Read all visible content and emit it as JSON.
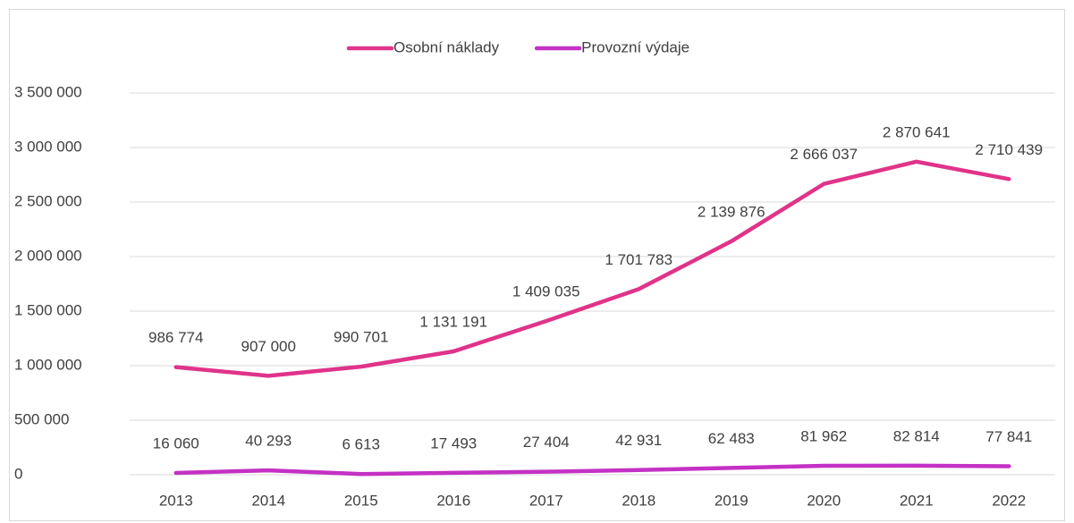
{
  "chart_data": {
    "type": "line",
    "categories": [
      "2013",
      "2014",
      "2015",
      "2016",
      "2017",
      "2018",
      "2019",
      "2020",
      "2021",
      "2022"
    ],
    "series": [
      {
        "name": "Osobní náklady",
        "color": "#e0338a",
        "values": [
          986774,
          907000,
          990701,
          1131191,
          1409035,
          1701783,
          2139876,
          2666037,
          2870641,
          2710439
        ],
        "value_labels": [
          "986 774",
          "907 000",
          "990 701",
          "1 131 191",
          "1 409 035",
          "1 701 783",
          "2 139 876",
          "2 666 037",
          "2 870 641",
          "2 710 439"
        ]
      },
      {
        "name": "Provozní výdaje",
        "color": "#c431c4",
        "values": [
          16060,
          40293,
          6613,
          17493,
          27404,
          42931,
          62483,
          81962,
          82814,
          77841
        ],
        "value_labels": [
          "16 060",
          "40 293",
          "6 613",
          "17 493",
          "27 404",
          "42 931",
          "62 483",
          "81 962",
          "82 814",
          "77 841"
        ]
      }
    ],
    "ylim": [
      0,
      3500000
    ],
    "yticks": [
      0,
      {
        "value": 500000,
        "label": "500 000"
      },
      {
        "value": 1000000,
        "label": "1 000 000"
      },
      {
        "value": 1500000,
        "label": "1 500 000"
      },
      {
        "value": 2000000,
        "label": "2 000 000"
      },
      {
        "value": 2500000,
        "label": "2 500 000"
      },
      {
        "value": 3000000,
        "label": "3 000 000"
      },
      {
        "value": 3500000,
        "label": "3 500 000"
      }
    ],
    "grid": true,
    "legend": "top"
  }
}
